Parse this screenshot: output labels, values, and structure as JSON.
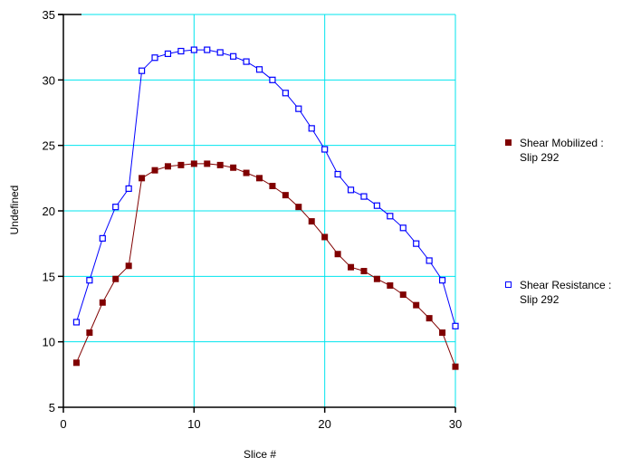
{
  "chart_data": {
    "type": "line",
    "title": "",
    "xlabel": "Slice #",
    "ylabel": "Undefined",
    "xlim": [
      0,
      30
    ],
    "ylim": [
      5,
      35
    ],
    "xticks": [
      0,
      10,
      20,
      30
    ],
    "yticks": [
      5,
      10,
      15,
      20,
      25,
      30,
      35
    ],
    "grid": true,
    "legend_position": "right",
    "x": [
      1,
      2,
      3,
      4,
      5,
      6,
      7,
      8,
      9,
      10,
      11,
      12,
      13,
      14,
      15,
      16,
      17,
      18,
      19,
      20,
      21,
      22,
      23,
      24,
      25,
      26,
      27,
      28,
      29,
      30
    ],
    "series": [
      {
        "name": "Shear Mobilized : Slip 292",
        "color": "#800000",
        "marker": "filled-square",
        "values": [
          8.4,
          10.7,
          13.0,
          14.8,
          15.8,
          22.5,
          23.1,
          23.4,
          23.5,
          23.6,
          23.6,
          23.5,
          23.3,
          22.9,
          22.5,
          21.9,
          21.2,
          20.3,
          19.2,
          18.0,
          16.7,
          15.7,
          15.4,
          14.8,
          14.3,
          13.6,
          12.8,
          11.8,
          10.7,
          8.1
        ]
      },
      {
        "name": "Shear Resistance : Slip 292",
        "color": "#0000ff",
        "marker": "hollow-square",
        "values": [
          11.5,
          14.7,
          17.9,
          20.3,
          21.7,
          30.7,
          31.7,
          32.0,
          32.2,
          32.3,
          32.3,
          32.1,
          31.8,
          31.4,
          30.8,
          30.0,
          29.0,
          27.8,
          26.3,
          24.7,
          22.8,
          21.6,
          21.1,
          20.4,
          19.6,
          18.7,
          17.5,
          16.2,
          14.7,
          11.2
        ]
      }
    ]
  },
  "legend": {
    "items": [
      {
        "line1": "Shear Mobilized :",
        "line2": "Slip 292"
      },
      {
        "line1": "Shear Resistance :",
        "line2": "Slip 292"
      }
    ]
  }
}
